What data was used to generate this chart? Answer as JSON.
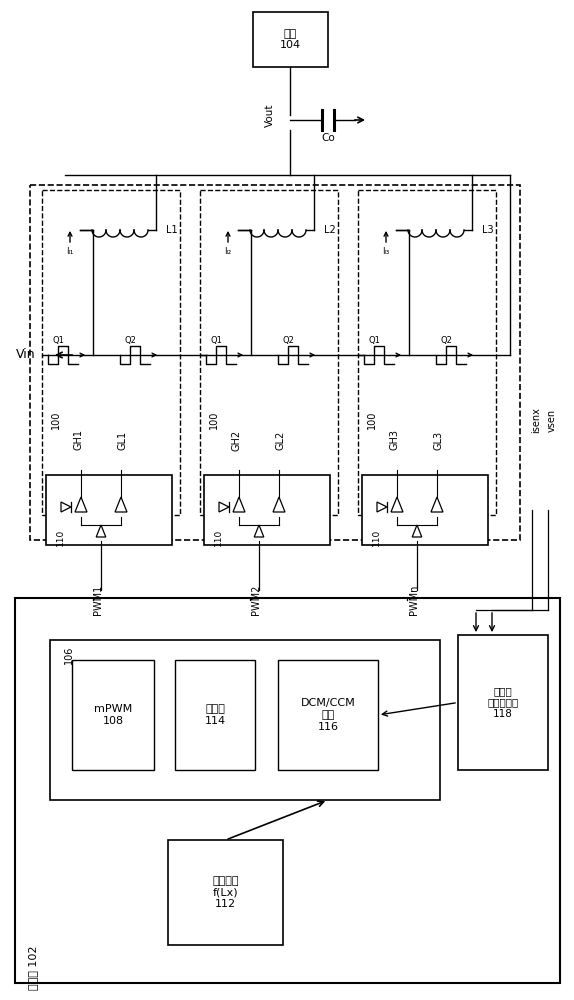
{
  "bg_color": "#ffffff",
  "load_label": "负载\n104",
  "vout_label": "Vout",
  "co_label": "Co",
  "vin_label": "Vin",
  "controller_label": "控制器 102",
  "mpwm_label": "mPWM\n108",
  "phase_stop_label": "相停止\n114",
  "dcmccm_label": "DCM/CCM\n控制\n116",
  "voltage_current_label": "电压和\n相电流感测\n118",
  "config_label": "配置参数\nf(Lx)\n112",
  "isenx_label": "isenx",
  "vsen_label": "vsen",
  "block_106": "106",
  "ind_labels": [
    "L1",
    "L2",
    "L3"
  ],
  "curr_labels": [
    "Iₗ₁",
    "Iₗ₂",
    "Iₗ₃"
  ],
  "gh_labels": [
    "GH1",
    "GH2",
    "GH3"
  ],
  "gl_labels": [
    "GL1",
    "GL2",
    "GL3"
  ],
  "pwm_labels": [
    "PWM1",
    "PWM2",
    "PWMn"
  ],
  "num_label": "100",
  "drv_label": "110"
}
